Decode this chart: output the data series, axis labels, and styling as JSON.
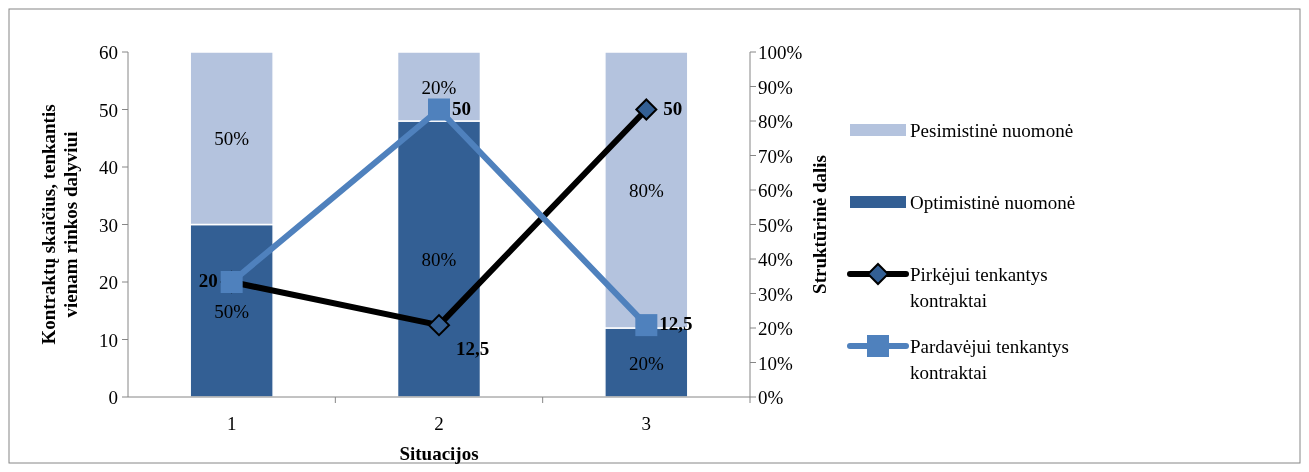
{
  "chart_data": {
    "type": "bar",
    "stacked": true,
    "categories": [
      "1",
      "2",
      "3"
    ],
    "xlabel": "Situacijos",
    "ylabel": "Kontraktų skaičius, tenkantis vienam rinkos dalyviui",
    "y2label": "Struktūrinė dalis",
    "ylim": [
      0,
      60
    ],
    "yticks": [
      0,
      10,
      20,
      30,
      40,
      50,
      60
    ],
    "y2lim": [
      0,
      100
    ],
    "y2ticks": [
      {
        "value": 0,
        "label": "0%"
      },
      {
        "value": 10,
        "label": "10%"
      },
      {
        "value": 20,
        "label": "20%"
      },
      {
        "value": 30,
        "label": "30%"
      },
      {
        "value": 40,
        "label": "40%"
      },
      {
        "value": 50,
        "label": "50%"
      },
      {
        "value": 60,
        "label": "60%"
      },
      {
        "value": 70,
        "label": "70%"
      },
      {
        "value": 80,
        "label": "80%"
      },
      {
        "value": 90,
        "label": "90%"
      },
      {
        "value": 100,
        "label": "100%"
      }
    ],
    "legend": "right",
    "grid": false,
    "series": [
      {
        "name": "Optimistinė nuomonė",
        "axis": "y2",
        "color": "#335f94",
        "values": [
          50,
          80,
          20
        ],
        "value_labels": [
          "50%",
          "80%",
          "20%"
        ]
      },
      {
        "name": "Pesimistinė nuomonė",
        "axis": "y2",
        "color": "#b4c3de",
        "values": [
          50,
          20,
          80
        ],
        "value_labels": [
          "50%",
          "20%",
          "80%"
        ]
      },
      {
        "name": "Pirkėjui tenkantys kontraktai",
        "type": "line",
        "marker": "diamond",
        "color": "#000000",
        "values": [
          20,
          12.5,
          50
        ],
        "value_labels": [
          "20",
          "12,5",
          "50"
        ]
      },
      {
        "name": "Pardavėjui tenkantys kontraktai",
        "type": "line",
        "marker": "square",
        "color": "#4f81bd",
        "values": [
          20,
          50,
          12.5
        ],
        "value_labels": [
          null,
          "50",
          "12,5"
        ]
      }
    ]
  }
}
